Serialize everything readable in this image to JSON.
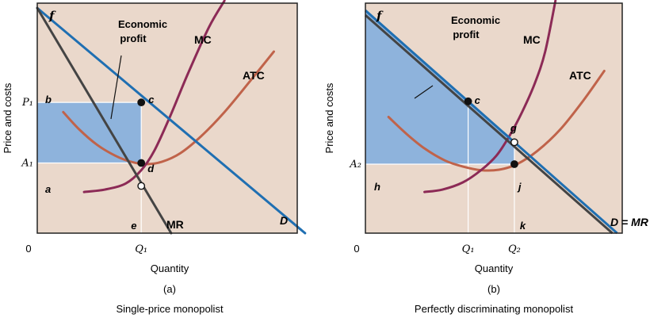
{
  "colors": {
    "plot_bg": "#ead8cb",
    "frame": "#222222",
    "demand": "#1f6fb2",
    "mr": "#444444",
    "mc": "#8c2a56",
    "atc": "#c0634a",
    "profit_fill": "#8eb3dc",
    "guide": "#ffffff"
  },
  "chart_data": [
    {
      "type": "line",
      "panel_label": "(a)",
      "caption": "Single-price monopolist",
      "xlabel": "Quantity",
      "ylabel": "Price and costs",
      "origin_label": "0",
      "x_ticks": [
        "Q₁"
      ],
      "y_ticks": [
        "P₁",
        "A₁"
      ],
      "annotation": "Economic profit",
      "annotation_lines": [
        "Economic",
        "profit"
      ],
      "curve_labels": {
        "f": "f",
        "mc": "MC",
        "atc": "ATC",
        "mr": "MR",
        "demand": "D"
      },
      "points": [
        {
          "label": "b",
          "q": 0,
          "p": 5.4
        },
        {
          "label": "c",
          "q": 4.0,
          "p": 5.4
        },
        {
          "label": "d",
          "q": 4.0,
          "p": 2.9
        },
        {
          "label": "a",
          "q": 0,
          "p": 2.9
        },
        {
          "label": "e",
          "q": 4.0,
          "p": 0
        }
      ],
      "axes": {
        "xlim": [
          0,
          10
        ],
        "ylim": [
          0,
          9.5
        ]
      },
      "series": [
        {
          "name": "D",
          "x": [
            0,
            10.3
          ],
          "y": [
            9.3,
            0
          ]
        },
        {
          "name": "MR",
          "x": [
            0,
            5.15
          ],
          "y": [
            9.3,
            0
          ]
        },
        {
          "name": "MC",
          "x": [
            1.8,
            2.6,
            3.4,
            4.0,
            4.5,
            5.1,
            5.8,
            6.6,
            7.2
          ],
          "y": [
            1.7,
            1.8,
            2.05,
            2.6,
            3.4,
            4.8,
            6.6,
            8.5,
            9.6
          ]
        },
        {
          "name": "ATC",
          "x": [
            1.0,
            1.6,
            2.3,
            3.0,
            3.6,
            4.2,
            4.8,
            5.5,
            6.3,
            7.2,
            8.2,
            9.1
          ],
          "y": [
            5.0,
            4.3,
            3.65,
            3.2,
            2.95,
            2.85,
            2.95,
            3.3,
            4.0,
            5.0,
            6.3,
            7.5
          ]
        }
      ],
      "profit_rect": {
        "q": [
          0,
          4.0
        ],
        "p": [
          2.9,
          5.4
        ]
      }
    },
    {
      "type": "line",
      "panel_label": "(b)",
      "caption": "Perfectly discriminating monopolist",
      "xlabel": "Quantity",
      "ylabel": "Price and costs",
      "origin_label": "0",
      "x_ticks": [
        "Q₁",
        "Q₂"
      ],
      "y_ticks": [
        "A₂"
      ],
      "annotation": "Economic profit",
      "annotation_lines": [
        "Economic",
        "profit"
      ],
      "curve_labels": {
        "f": "f",
        "mc": "MC",
        "atc": "ATC",
        "demand": "D = MR"
      },
      "points": [
        {
          "label": "c",
          "q": 4.0,
          "p": 5.4
        },
        {
          "label": "g",
          "q": 5.8,
          "p": 3.7
        },
        {
          "label": "j",
          "q": 5.8,
          "p": 2.85
        },
        {
          "label": "h",
          "q": 0,
          "p": 2.85
        },
        {
          "label": "k",
          "q": 5.8,
          "p": 0
        }
      ],
      "axes": {
        "xlim": [
          0,
          10
        ],
        "ylim": [
          0,
          9.5
        ]
      },
      "series": [
        {
          "name": "D = MR",
          "x": [
            0,
            9.8
          ],
          "y": [
            9.2,
            0
          ]
        },
        {
          "name": "MC",
          "x": [
            2.3,
            3.0,
            3.8,
            4.5,
            5.1,
            5.6,
            6.1,
            6.6,
            7.0,
            7.4
          ],
          "y": [
            1.7,
            1.8,
            2.1,
            2.6,
            3.2,
            4.0,
            5.0,
            6.2,
            7.5,
            9.6
          ]
        },
        {
          "name": "ATC",
          "x": [
            0.9,
            1.6,
            2.3,
            3.1,
            3.8,
            4.5,
            5.2,
            5.9,
            6.7,
            7.6,
            8.5,
            9.3
          ],
          "y": [
            4.8,
            4.1,
            3.5,
            3.0,
            2.75,
            2.6,
            2.62,
            2.85,
            3.4,
            4.3,
            5.5,
            6.7
          ]
        }
      ],
      "profit_area": {
        "q": [
          0,
          5.8
        ],
        "p_low": 2.85
      }
    }
  ]
}
